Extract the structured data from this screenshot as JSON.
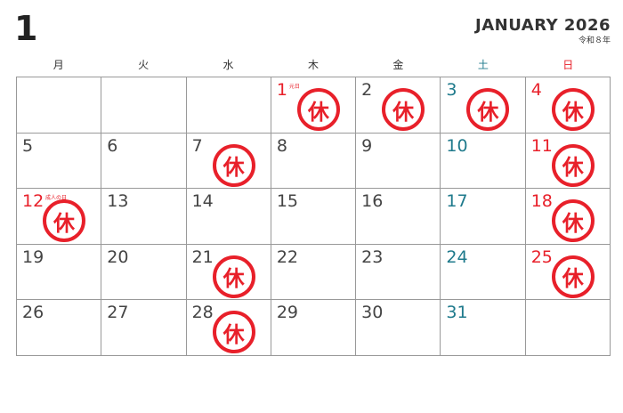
{
  "header": {
    "month_number": "1",
    "title": "JANUARY 2026",
    "era": "令和８年"
  },
  "colors": {
    "weekday": "#444444",
    "saturday": "#1f7a8c",
    "holiday": "#e8202a"
  },
  "weekdays": [
    {
      "label": "月",
      "type": "weekday"
    },
    {
      "label": "火",
      "type": "weekday"
    },
    {
      "label": "水",
      "type": "weekday"
    },
    {
      "label": "木",
      "type": "weekday"
    },
    {
      "label": "金",
      "type": "weekday"
    },
    {
      "label": "土",
      "type": "saturday"
    },
    {
      "label": "日",
      "type": "holiday"
    }
  ],
  "rest_mark": "休",
  "weeks": [
    [
      null,
      null,
      null,
      {
        "day": "1",
        "type": "holiday",
        "holiday": "元日",
        "rest": true
      },
      {
        "day": "2",
        "type": "weekday",
        "rest": true
      },
      {
        "day": "3",
        "type": "saturday",
        "rest": true
      },
      {
        "day": "4",
        "type": "holiday",
        "rest": true
      }
    ],
    [
      {
        "day": "5",
        "type": "weekday"
      },
      {
        "day": "6",
        "type": "weekday"
      },
      {
        "day": "7",
        "type": "weekday",
        "rest": true
      },
      {
        "day": "8",
        "type": "weekday"
      },
      {
        "day": "9",
        "type": "weekday"
      },
      {
        "day": "10",
        "type": "saturday"
      },
      {
        "day": "11",
        "type": "holiday",
        "rest": true
      }
    ],
    [
      {
        "day": "12",
        "type": "holiday",
        "holiday": "成人の日",
        "rest": true
      },
      {
        "day": "13",
        "type": "weekday"
      },
      {
        "day": "14",
        "type": "weekday"
      },
      {
        "day": "15",
        "type": "weekday"
      },
      {
        "day": "16",
        "type": "weekday"
      },
      {
        "day": "17",
        "type": "saturday"
      },
      {
        "day": "18",
        "type": "holiday",
        "rest": true
      }
    ],
    [
      {
        "day": "19",
        "type": "weekday"
      },
      {
        "day": "20",
        "type": "weekday"
      },
      {
        "day": "21",
        "type": "weekday",
        "rest": true
      },
      {
        "day": "22",
        "type": "weekday"
      },
      {
        "day": "23",
        "type": "weekday"
      },
      {
        "day": "24",
        "type": "saturday"
      },
      {
        "day": "25",
        "type": "holiday",
        "rest": true
      }
    ],
    [
      {
        "day": "26",
        "type": "weekday"
      },
      {
        "day": "27",
        "type": "weekday"
      },
      {
        "day": "28",
        "type": "weekday",
        "rest": true
      },
      {
        "day": "29",
        "type": "weekday"
      },
      {
        "day": "30",
        "type": "weekday"
      },
      {
        "day": "31",
        "type": "saturday"
      },
      null
    ]
  ]
}
